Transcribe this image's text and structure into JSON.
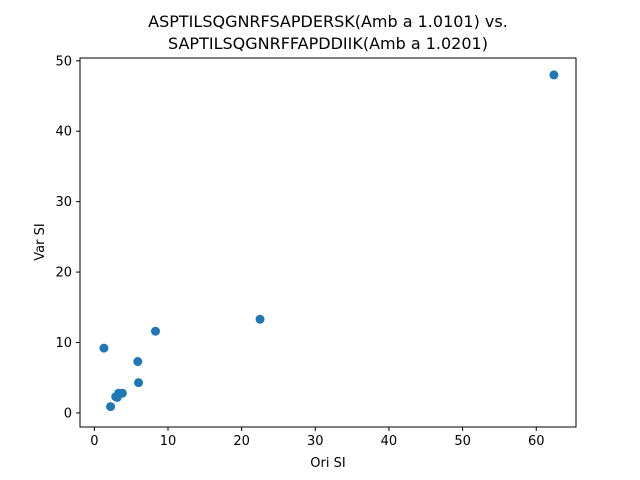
{
  "chart_data": {
    "type": "scatter",
    "title_line1": "ASPTILSQGNRFSAPDERSK(Amb a 1.0101) vs.",
    "title_line2": "SAPTILSQGNRFFAPDDIIK(Amb a 1.0201)",
    "xlabel": "Ori SI",
    "ylabel": "Var SI",
    "xlim": [
      -1.95,
      65.4
    ],
    "ylim": [
      -2.0,
      50.4
    ],
    "xticks": [
      0,
      10,
      20,
      30,
      40,
      50,
      60
    ],
    "yticks": [
      0,
      10,
      20,
      30,
      40,
      50
    ],
    "grid": false,
    "marker_color": "#1f77b4",
    "points": [
      {
        "x": 1.3,
        "y": 9.2
      },
      {
        "x": 2.2,
        "y": 0.9
      },
      {
        "x": 2.9,
        "y": 2.3
      },
      {
        "x": 3.1,
        "y": 2.2
      },
      {
        "x": 3.3,
        "y": 2.8
      },
      {
        "x": 3.8,
        "y": 2.8
      },
      {
        "x": 5.9,
        "y": 7.3
      },
      {
        "x": 6.0,
        "y": 4.3
      },
      {
        "x": 8.3,
        "y": 11.6
      },
      {
        "x": 22.5,
        "y": 13.3
      },
      {
        "x": 62.4,
        "y": 48.0
      }
    ]
  }
}
